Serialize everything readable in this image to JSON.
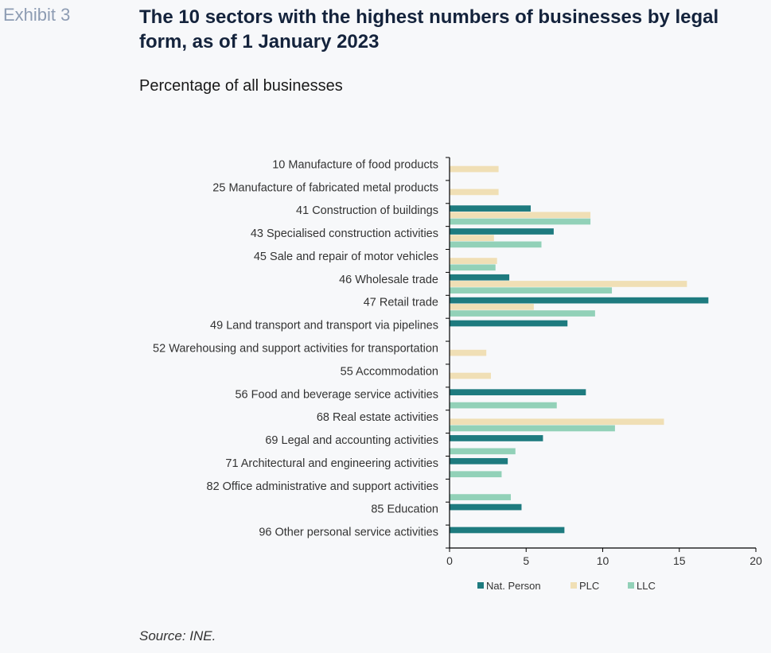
{
  "header": {
    "exhibit": "Exhibit 3",
    "title": "The 10 sectors with the highest numbers of businesses by legal form, as of 1 January 2023",
    "subtitle": "Percentage of all businesses"
  },
  "footer": {
    "source": "Source: INE."
  },
  "chart_data": {
    "type": "bar",
    "orientation": "horizontal",
    "categories": [
      "10 Manufacture of food products",
      "25 Manufacture of fabricated metal products",
      "41 Construction of buildings",
      "43 Specialised construction activities",
      "45 Sale and repair of motor vehicles",
      "46 Wholesale trade",
      "47 Retail trade",
      "49 Land transport and transport via pipelines",
      "52 Warehousing and support activities for transportation",
      "55 Accommodation",
      "56 Food and beverage service activities",
      "68 Real estate activities",
      "69 Legal and accounting activities",
      "71 Architectural and engineering activities",
      "82 Office administrative and support activities",
      "85 Education",
      "96 Other personal service activities"
    ],
    "series": [
      {
        "name": "Nat. Person",
        "color": "#1e7b7f",
        "values": [
          null,
          null,
          5.3,
          6.8,
          null,
          3.9,
          16.9,
          7.7,
          null,
          null,
          8.9,
          null,
          6.1,
          3.8,
          null,
          4.7,
          7.5
        ]
      },
      {
        "name": "PLC",
        "color": "#f0dfb5",
        "values": [
          3.2,
          3.2,
          9.2,
          2.9,
          3.1,
          15.5,
          5.5,
          null,
          2.4,
          2.7,
          null,
          14.0,
          null,
          null,
          null,
          null,
          null
        ]
      },
      {
        "name": "LLC",
        "color": "#92d1b8",
        "values": [
          null,
          null,
          9.2,
          6.0,
          3.0,
          10.6,
          9.5,
          null,
          null,
          null,
          7.0,
          10.8,
          4.3,
          3.4,
          4.0,
          null,
          null
        ]
      }
    ],
    "xlim": [
      0,
      20
    ],
    "xticks": [
      0,
      5,
      10,
      15,
      20
    ],
    "legend_position": "bottom"
  }
}
